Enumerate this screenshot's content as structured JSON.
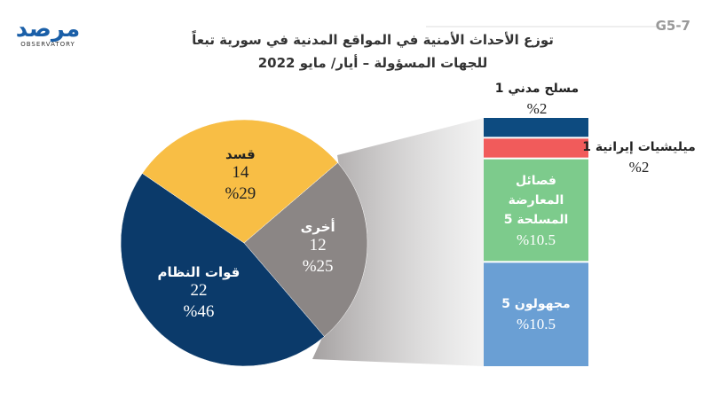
{
  "chart_data": {
    "type": "pie",
    "title": [
      "توزع الأحداث الأمنية في المواقع المدنية في سورية تبعاً",
      "للجهات المسؤولة – أيار/ مايو 2022"
    ],
    "code": "G5-7",
    "logo": {
      "text": "مرصد",
      "subtext": "OBSERVATORY"
    },
    "categories": [
      "قوات النظام",
      "قسد",
      "أخرى"
    ],
    "values": [
      22,
      14,
      12
    ],
    "percent": [
      46,
      29,
      25
    ],
    "percent_labels": [
      "%46",
      "%29",
      "%25"
    ],
    "colors": [
      "#0b3a6a",
      "#f8be45",
      "#8b8685"
    ],
    "breakdown": {
      "categories": [
        "مسلح مدني",
        "ميليشيات إيرانية",
        "فصائل المعارضة المسلحة",
        "مجهولون"
      ],
      "values": [
        1,
        1,
        5,
        5
      ],
      "percent": [
        2,
        2,
        10.5,
        10.5
      ],
      "percent_labels": [
        "%2",
        "%2",
        "%10.5",
        "%10.5"
      ],
      "colors": [
        "#0d4b80",
        "#f15b5b",
        "#7dcb8c",
        "#6a9fd4"
      ]
    }
  }
}
